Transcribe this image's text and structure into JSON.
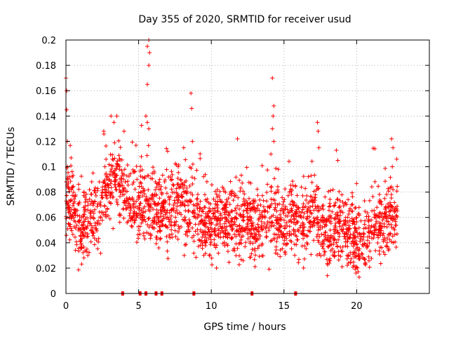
{
  "chart_data": {
    "type": "scatter",
    "title": "Day 355 of 2020, SRMTID for receiver usud",
    "xlabel": "GPS time / hours",
    "ylabel": "SRMTID / TECUs",
    "xlim": [
      0,
      25
    ],
    "ylim": [
      0,
      0.2
    ],
    "xticks": [
      0,
      5,
      10,
      15,
      20
    ],
    "xtick_labels": [
      "0",
      "5",
      "10",
      "15",
      "20"
    ],
    "yticks": [
      0,
      0.02,
      0.04,
      0.06,
      0.08,
      0.1,
      0.12,
      0.14,
      0.16,
      0.18,
      0.2
    ],
    "ytick_labels": [
      "0",
      "0.02",
      "0.04",
      "0.06",
      "0.08",
      "0.1",
      "0.12",
      "0.14",
      "0.16",
      "0.18",
      "0.2"
    ],
    "grid": true,
    "marker": "+",
    "color": "#ff0000",
    "baseline_markers_x": [
      3.9,
      5.1,
      5.5,
      6.2,
      6.6,
      8.8,
      12.8,
      15.8
    ],
    "trend": {
      "x": [
        0,
        0.5,
        1,
        1.5,
        2,
        2.5,
        3,
        3.5,
        4,
        4.5,
        5,
        5.5,
        6,
        6.5,
        7,
        7.5,
        8,
        8.5,
        9,
        9.5,
        10,
        10.5,
        11,
        11.5,
        12,
        12.5,
        13,
        13.5,
        14,
        14.5,
        15,
        15.5,
        16,
        16.5,
        17,
        17.5,
        18,
        18.5,
        19,
        19.5,
        20,
        20.5,
        21,
        21.5,
        22,
        22.5,
        22.8
      ],
      "y": [
        0.075,
        0.07,
        0.05,
        0.058,
        0.06,
        0.07,
        0.085,
        0.095,
        0.078,
        0.075,
        0.07,
        0.072,
        0.068,
        0.065,
        0.062,
        0.07,
        0.072,
        0.066,
        0.06,
        0.055,
        0.052,
        0.057,
        0.06,
        0.055,
        0.055,
        0.058,
        0.055,
        0.058,
        0.062,
        0.06,
        0.058,
        0.06,
        0.055,
        0.058,
        0.062,
        0.058,
        0.05,
        0.048,
        0.052,
        0.045,
        0.042,
        0.045,
        0.05,
        0.055,
        0.058,
        0.06,
        0.062
      ]
    },
    "spread": 0.014,
    "outliers": [
      {
        "x": 0.0,
        "y": 0.17
      },
      {
        "x": 0.05,
        "y": 0.16
      },
      {
        "x": 0.05,
        "y": 0.145
      },
      {
        "x": 0.1,
        "y": 0.12
      },
      {
        "x": 0.1,
        "y": 0.1
      },
      {
        "x": 3.1,
        "y": 0.14
      },
      {
        "x": 3.3,
        "y": 0.135
      },
      {
        "x": 3.5,
        "y": 0.14
      },
      {
        "x": 2.6,
        "y": 0.128
      },
      {
        "x": 4.0,
        "y": 0.128
      },
      {
        "x": 5.6,
        "y": 0.195
      },
      {
        "x": 5.7,
        "y": 0.2
      },
      {
        "x": 5.75,
        "y": 0.19
      },
      {
        "x": 5.7,
        "y": 0.18
      },
      {
        "x": 5.6,
        "y": 0.165
      },
      {
        "x": 5.5,
        "y": 0.14
      },
      {
        "x": 5.6,
        "y": 0.135
      },
      {
        "x": 5.7,
        "y": 0.13
      },
      {
        "x": 8.6,
        "y": 0.158
      },
      {
        "x": 8.65,
        "y": 0.146
      },
      {
        "x": 8.1,
        "y": 0.115
      },
      {
        "x": 8.7,
        "y": 0.12
      },
      {
        "x": 14.2,
        "y": 0.17
      },
      {
        "x": 14.3,
        "y": 0.148
      },
      {
        "x": 14.25,
        "y": 0.14
      },
      {
        "x": 14.2,
        "y": 0.13
      },
      {
        "x": 14.3,
        "y": 0.12
      },
      {
        "x": 14.1,
        "y": 0.11
      },
      {
        "x": 11.8,
        "y": 0.122
      },
      {
        "x": 17.3,
        "y": 0.135
      },
      {
        "x": 17.35,
        "y": 0.128
      },
      {
        "x": 17.4,
        "y": 0.115
      },
      {
        "x": 18.6,
        "y": 0.113
      },
      {
        "x": 18.7,
        "y": 0.105
      },
      {
        "x": 22.4,
        "y": 0.122
      },
      {
        "x": 22.5,
        "y": 0.115
      },
      {
        "x": 22.45,
        "y": 0.1
      }
    ]
  }
}
